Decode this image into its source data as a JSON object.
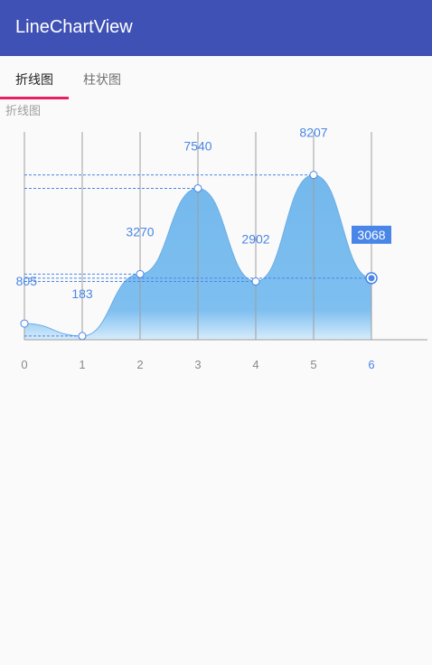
{
  "app": {
    "title": "LineChartView"
  },
  "tabs": [
    {
      "label": "折线图",
      "selected": true
    },
    {
      "label": "柱状图",
      "selected": false
    }
  ],
  "section_label": "折线图",
  "colors": {
    "primary": "#3f51b5",
    "tab_indicator": "#e91e63",
    "area_fill": "#74b8ec",
    "value_text": "#4a86e8",
    "selected_badge": "#4a86e8"
  },
  "chart_data": {
    "type": "area",
    "x": [
      0,
      1,
      2,
      3,
      4,
      5,
      6
    ],
    "tick_labels": [
      "0",
      "1",
      "2",
      "3",
      "4",
      "5",
      "6"
    ],
    "values": [
      805,
      183,
      3270,
      7540,
      2902,
      8207,
      3068
    ],
    "value_labels": [
      "805",
      "183",
      "3270",
      "7540",
      "2902",
      "8207",
      "3068"
    ],
    "selected_index": 6,
    "ylim": [
      0,
      9000
    ],
    "grid": "vertical",
    "title": "",
    "xlabel": "",
    "ylabel": ""
  }
}
